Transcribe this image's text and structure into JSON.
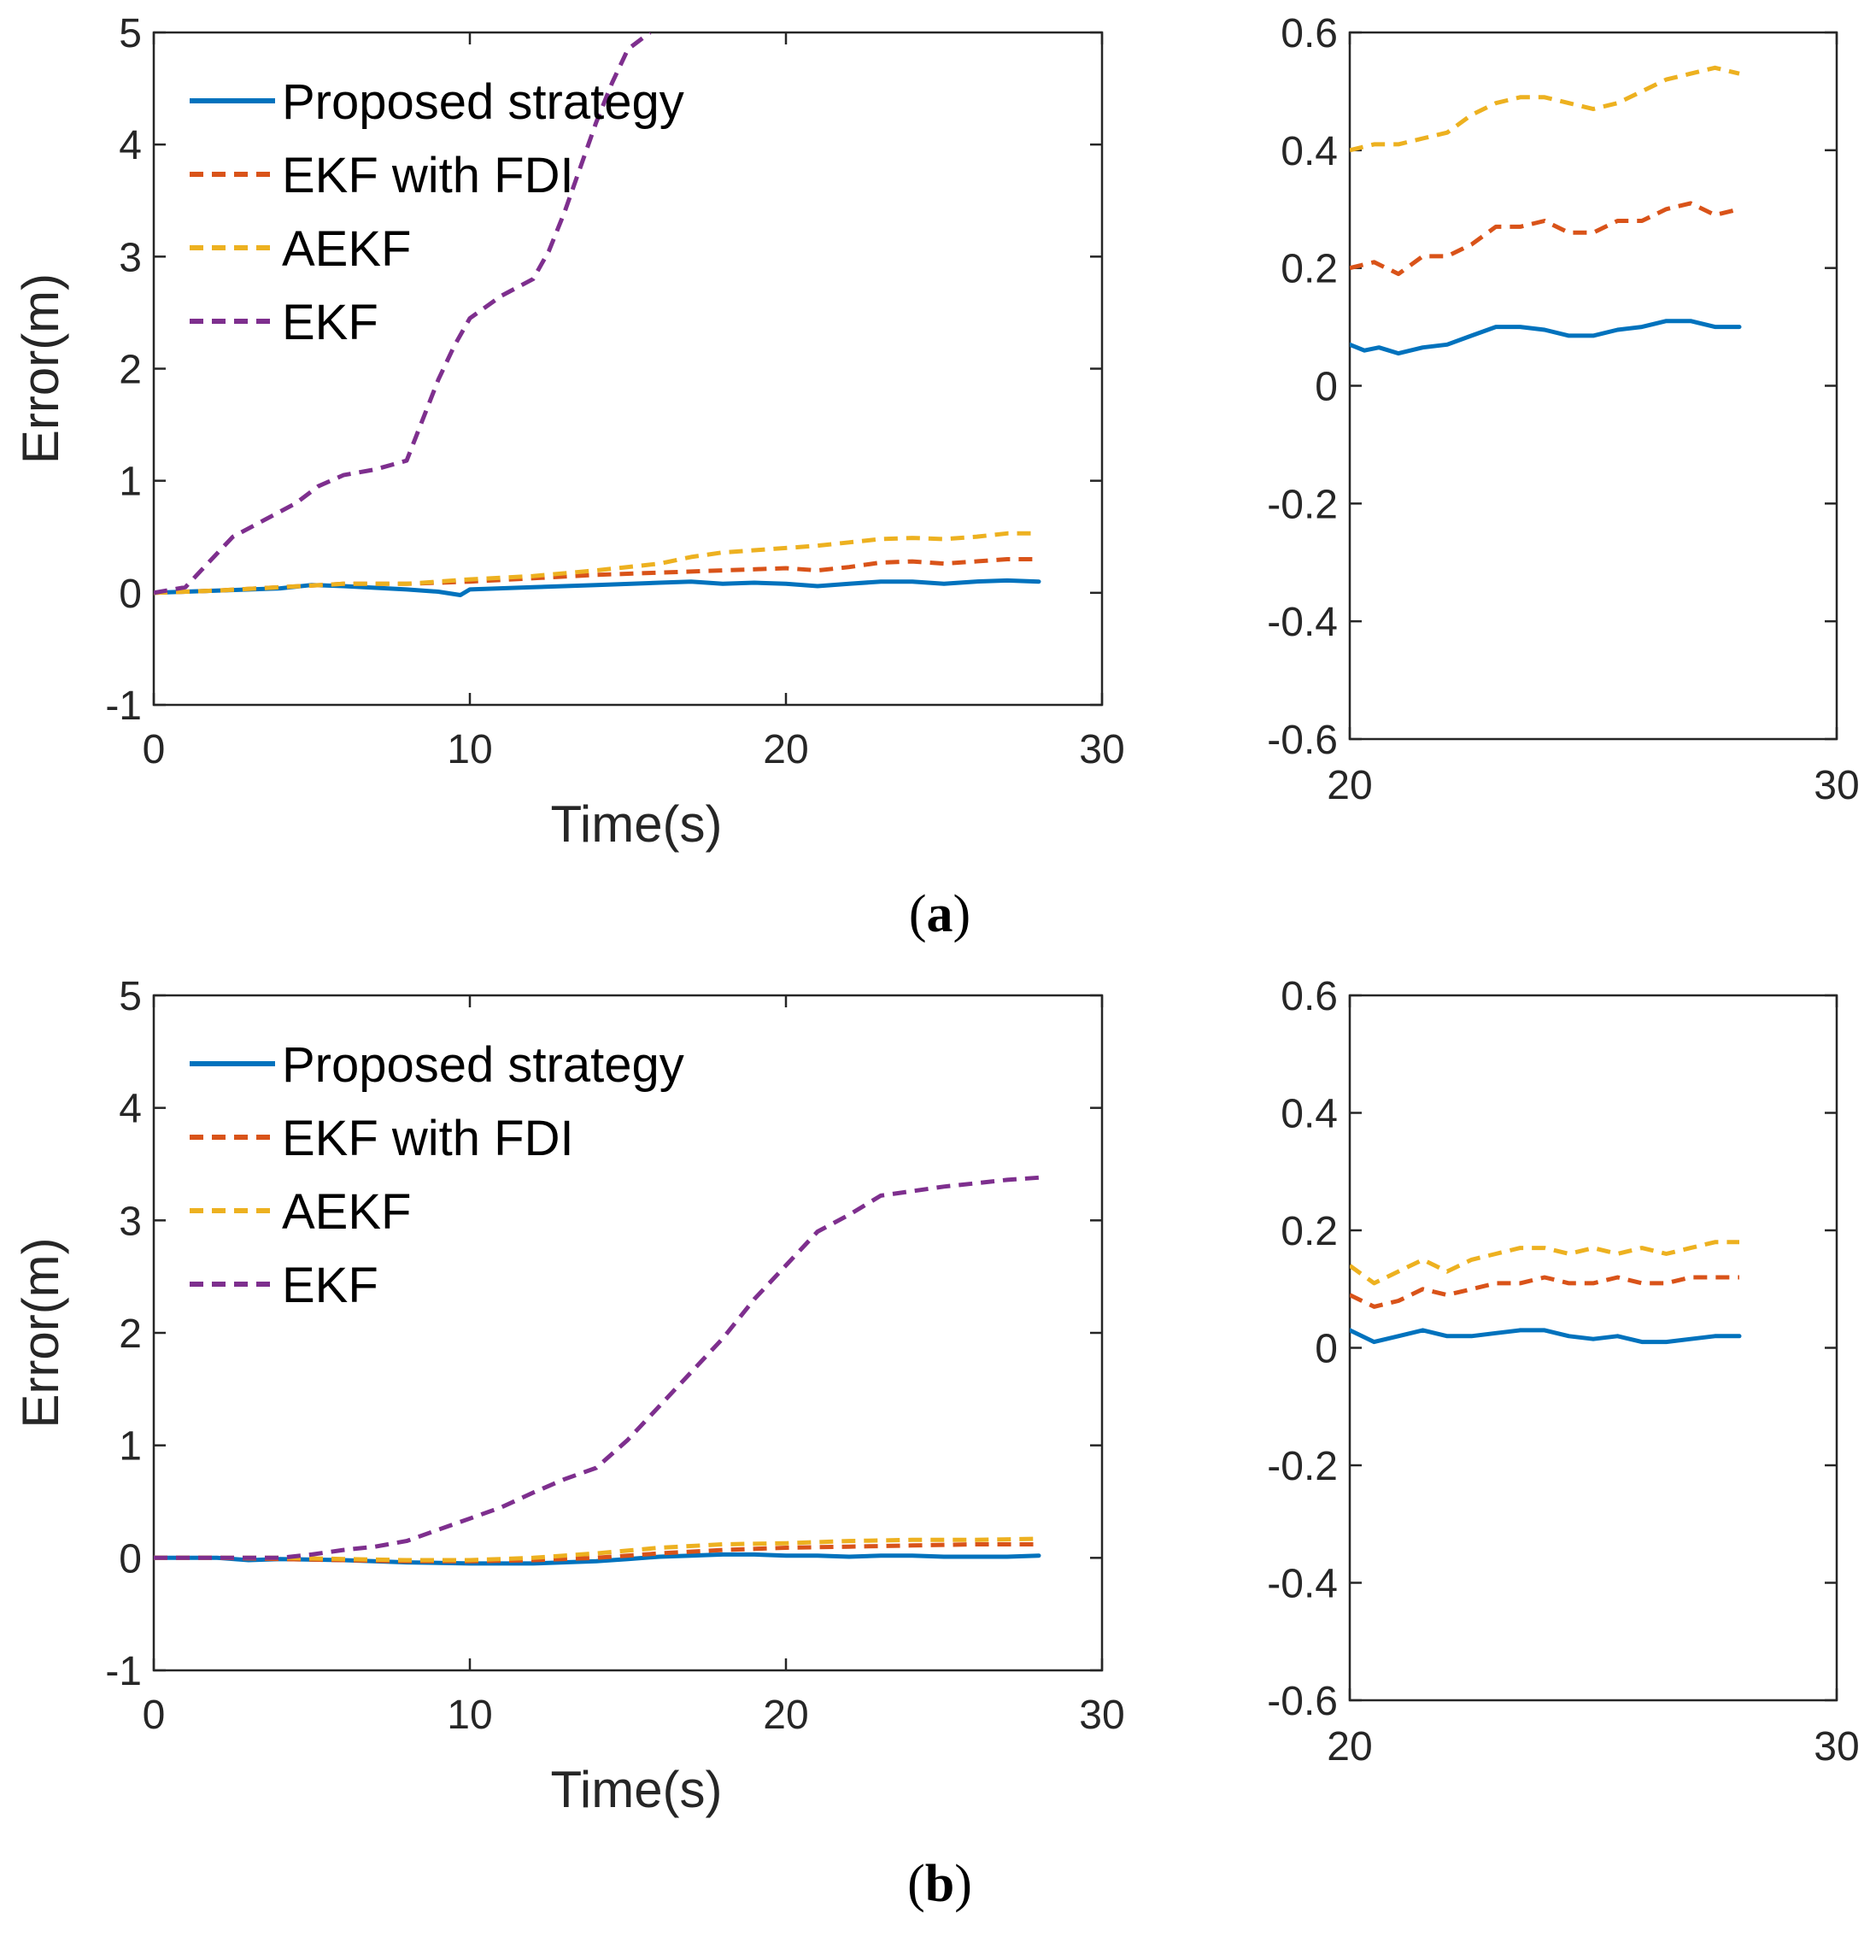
{
  "colors": {
    "proposed": "#0072BD",
    "ekf_fdi": "#D95319",
    "aekf": "#EDB120",
    "ekf": "#7E2F8E"
  },
  "chart_data": [
    {
      "id": "a-main",
      "type": "line",
      "caption": "a",
      "xlabel": "Time(s)",
      "ylabel": "Error(m)",
      "xlim": [
        0,
        30
      ],
      "ylim": [
        -1,
        5
      ],
      "xticks": [
        "0",
        "10",
        "20",
        "30"
      ],
      "yticks": [
        "-1",
        "0",
        "1",
        "2",
        "3",
        "4",
        "5"
      ],
      "legend": [
        "Proposed strategy",
        "EKF with FDI",
        "AEKF",
        "EKF"
      ],
      "legend_position": "top-left",
      "series": [
        {
          "name": "Proposed strategy",
          "color": "proposed",
          "dashed": false,
          "x": [
            0,
            2,
            4,
            5,
            6,
            8,
            9,
            9.7,
            10,
            12,
            14,
            16,
            17,
            18,
            19,
            20,
            21,
            22,
            23,
            24,
            25,
            26,
            27,
            28
          ],
          "y": [
            0,
            0.02,
            0.04,
            0.07,
            0.06,
            0.03,
            0.01,
            -0.02,
            0.03,
            0.05,
            0.07,
            0.09,
            0.1,
            0.08,
            0.09,
            0.08,
            0.06,
            0.08,
            0.1,
            0.1,
            0.08,
            0.1,
            0.11,
            0.1
          ]
        },
        {
          "name": "EKF with FDI",
          "color": "ekf_fdi",
          "dashed": true,
          "x": [
            0,
            2,
            4,
            6,
            8,
            10,
            12,
            14,
            16,
            18,
            20,
            21,
            22,
            23,
            24,
            25,
            26,
            27,
            28
          ],
          "y": [
            0,
            0.02,
            0.05,
            0.08,
            0.08,
            0.1,
            0.13,
            0.16,
            0.18,
            0.2,
            0.22,
            0.2,
            0.23,
            0.27,
            0.28,
            0.26,
            0.28,
            0.3,
            0.3
          ]
        },
        {
          "name": "AEKF",
          "color": "aekf",
          "dashed": true,
          "x": [
            0,
            2,
            4,
            6,
            8,
            10,
            12,
            14,
            16,
            17,
            18,
            19,
            20,
            21,
            22,
            23,
            24,
            25,
            26,
            27,
            28
          ],
          "y": [
            0,
            0.02,
            0.05,
            0.08,
            0.08,
            0.12,
            0.15,
            0.2,
            0.26,
            0.32,
            0.36,
            0.38,
            0.4,
            0.42,
            0.45,
            0.48,
            0.49,
            0.48,
            0.5,
            0.53,
            0.53
          ]
        },
        {
          "name": "EKF",
          "color": "ekf",
          "dashed": true,
          "x": [
            0,
            1,
            1.5,
            2,
            2.5,
            3.5,
            4.5,
            5.2,
            6,
            7,
            8,
            9,
            9.5,
            10,
            11,
            12,
            12.5,
            13,
            13.5,
            14,
            14.5,
            15,
            15.7
          ],
          "y": [
            0,
            0.05,
            0.2,
            0.35,
            0.5,
            0.65,
            0.8,
            0.95,
            1.05,
            1.1,
            1.18,
            1.9,
            2.2,
            2.45,
            2.65,
            2.8,
            3.05,
            3.4,
            3.8,
            4.2,
            4.55,
            4.85,
            5.0
          ]
        }
      ]
    },
    {
      "id": "a-zoom",
      "type": "line",
      "xlim": [
        20,
        30
      ],
      "ylim": [
        -0.6,
        0.6
      ],
      "xticks": [
        "20",
        "30"
      ],
      "yticks": [
        "-0.6",
        "-0.4",
        "-0.2",
        "0",
        "0.2",
        "0.4",
        "0.6"
      ],
      "series": [
        {
          "name": "Proposed strategy",
          "color": "proposed",
          "dashed": false,
          "x": [
            20,
            20.3,
            20.6,
            21,
            21.5,
            22,
            22.5,
            23,
            23.5,
            24,
            24.5,
            25,
            25.5,
            26,
            26.5,
            27,
            27.5,
            28
          ],
          "y": [
            0.07,
            0.06,
            0.065,
            0.055,
            0.065,
            0.07,
            0.085,
            0.1,
            0.1,
            0.095,
            0.085,
            0.085,
            0.095,
            0.1,
            0.11,
            0.11,
            0.1,
            0.1
          ]
        },
        {
          "name": "EKF with FDI",
          "color": "ekf_fdi",
          "dashed": true,
          "x": [
            20,
            20.5,
            21,
            21.5,
            22,
            22.5,
            23,
            23.5,
            24,
            24.5,
            25,
            25.5,
            26,
            26.5,
            27,
            27.5,
            28
          ],
          "y": [
            0.2,
            0.21,
            0.19,
            0.22,
            0.22,
            0.24,
            0.27,
            0.27,
            0.28,
            0.26,
            0.26,
            0.28,
            0.28,
            0.3,
            0.31,
            0.29,
            0.3
          ]
        },
        {
          "name": "AEKF",
          "color": "aekf",
          "dashed": true,
          "x": [
            20,
            20.5,
            21,
            21.5,
            22,
            22.5,
            23,
            23.5,
            24,
            24.5,
            25,
            25.5,
            26,
            26.5,
            27,
            27.5,
            28
          ],
          "y": [
            0.4,
            0.41,
            0.41,
            0.42,
            0.43,
            0.46,
            0.48,
            0.49,
            0.49,
            0.48,
            0.47,
            0.48,
            0.5,
            0.52,
            0.53,
            0.54,
            0.53
          ]
        }
      ]
    },
    {
      "id": "b-main",
      "type": "line",
      "caption": "b",
      "xlabel": "Time(s)",
      "ylabel": "Error(m)",
      "xlim": [
        0,
        30
      ],
      "ylim": [
        -1,
        5
      ],
      "xticks": [
        "0",
        "10",
        "20",
        "30"
      ],
      "yticks": [
        "-1",
        "0",
        "1",
        "2",
        "3",
        "4",
        "5"
      ],
      "legend": [
        "Proposed strategy",
        "EKF with FDI",
        "AEKF",
        "EKF"
      ],
      "legend_position": "top-left",
      "series": [
        {
          "name": "Proposed strategy",
          "color": "proposed",
          "dashed": false,
          "x": [
            0,
            2,
            3,
            4,
            6,
            8,
            10,
            12,
            14,
            15,
            16,
            17,
            18,
            19,
            20,
            21,
            22,
            23,
            24,
            25,
            26,
            27,
            28
          ],
          "y": [
            0,
            0,
            -0.02,
            -0.01,
            -0.02,
            -0.04,
            -0.05,
            -0.05,
            -0.03,
            -0.01,
            0.01,
            0.02,
            0.03,
            0.03,
            0.02,
            0.02,
            0.01,
            0.02,
            0.02,
            0.01,
            0.01,
            0.01,
            0.02
          ]
        },
        {
          "name": "EKF with FDI",
          "color": "ekf_fdi",
          "dashed": true,
          "x": [
            0,
            2,
            4,
            6,
            8,
            10,
            12,
            14,
            16,
            18,
            20,
            22,
            24,
            26,
            28
          ],
          "y": [
            0,
            0,
            -0.01,
            -0.02,
            -0.03,
            -0.03,
            -0.02,
            0.0,
            0.04,
            0.07,
            0.09,
            0.1,
            0.11,
            0.12,
            0.12
          ]
        },
        {
          "name": "AEKF",
          "color": "aekf",
          "dashed": true,
          "x": [
            0,
            2,
            4,
            6,
            8,
            10,
            12,
            14,
            16,
            18,
            20,
            22,
            24,
            26,
            28
          ],
          "y": [
            0,
            0,
            0.0,
            -0.01,
            -0.02,
            -0.02,
            0.0,
            0.04,
            0.09,
            0.12,
            0.13,
            0.15,
            0.16,
            0.16,
            0.17
          ]
        },
        {
          "name": "EKF",
          "color": "ekf",
          "dashed": true,
          "x": [
            0,
            2,
            4,
            5,
            6,
            7,
            8,
            9,
            10,
            11,
            12,
            13,
            14,
            15,
            16,
            17,
            18,
            19,
            20,
            21,
            22,
            23,
            24,
            25,
            26,
            27,
            28
          ],
          "y": [
            0,
            0,
            0,
            0.03,
            0.07,
            0.1,
            0.15,
            0.25,
            0.35,
            0.45,
            0.58,
            0.7,
            0.8,
            1.05,
            1.35,
            1.65,
            1.95,
            2.3,
            2.6,
            2.9,
            3.05,
            3.22,
            3.26,
            3.3,
            3.33,
            3.36,
            3.38
          ]
        }
      ]
    },
    {
      "id": "b-zoom",
      "type": "line",
      "xlim": [
        20,
        30
      ],
      "ylim": [
        -0.6,
        0.6
      ],
      "xticks": [
        "20",
        "30"
      ],
      "yticks": [
        "-0.6",
        "-0.4",
        "-0.2",
        "0",
        "0.2",
        "0.4",
        "0.6"
      ],
      "series": [
        {
          "name": "Proposed strategy",
          "color": "proposed",
          "dashed": false,
          "x": [
            20,
            20.5,
            21,
            21.5,
            22,
            22.5,
            23,
            23.5,
            24,
            24.5,
            25,
            25.5,
            26,
            26.5,
            27,
            27.5,
            28
          ],
          "y": [
            0.03,
            0.01,
            0.02,
            0.03,
            0.02,
            0.02,
            0.025,
            0.03,
            0.03,
            0.02,
            0.015,
            0.02,
            0.01,
            0.01,
            0.015,
            0.02,
            0.02
          ]
        },
        {
          "name": "EKF with FDI",
          "color": "ekf_fdi",
          "dashed": true,
          "x": [
            20,
            20.5,
            21,
            21.5,
            22,
            22.5,
            23,
            23.5,
            24,
            24.5,
            25,
            25.5,
            26,
            26.5,
            27,
            27.5,
            28
          ],
          "y": [
            0.09,
            0.07,
            0.08,
            0.1,
            0.09,
            0.1,
            0.11,
            0.11,
            0.12,
            0.11,
            0.11,
            0.12,
            0.11,
            0.11,
            0.12,
            0.12,
            0.12
          ]
        },
        {
          "name": "AEKF",
          "color": "aekf",
          "dashed": true,
          "x": [
            20,
            20.5,
            21,
            21.5,
            22,
            22.5,
            23,
            23.5,
            24,
            24.5,
            25,
            25.5,
            26,
            26.5,
            27,
            27.5,
            28
          ],
          "y": [
            0.14,
            0.11,
            0.13,
            0.15,
            0.13,
            0.15,
            0.16,
            0.17,
            0.17,
            0.16,
            0.17,
            0.16,
            0.17,
            0.16,
            0.17,
            0.18,
            0.18
          ]
        }
      ]
    }
  ]
}
